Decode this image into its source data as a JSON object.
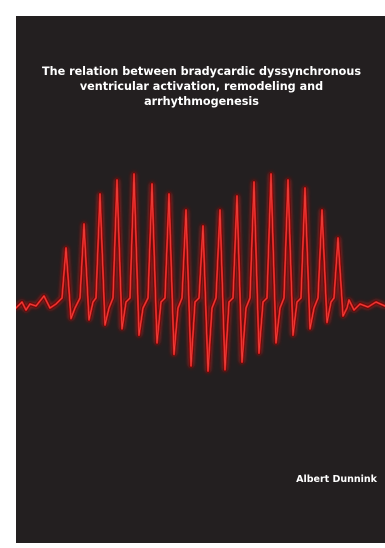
{
  "cover": {
    "title_lines": [
      "The relation between bradycardic dyssynchronous",
      "ventricular activation, remodeling and",
      "arrhythmogenesis"
    ],
    "author": "Albert Dunnink",
    "background_color": "#231f20",
    "text_color": "#ffffff",
    "ecg_color": "#d01818"
  }
}
